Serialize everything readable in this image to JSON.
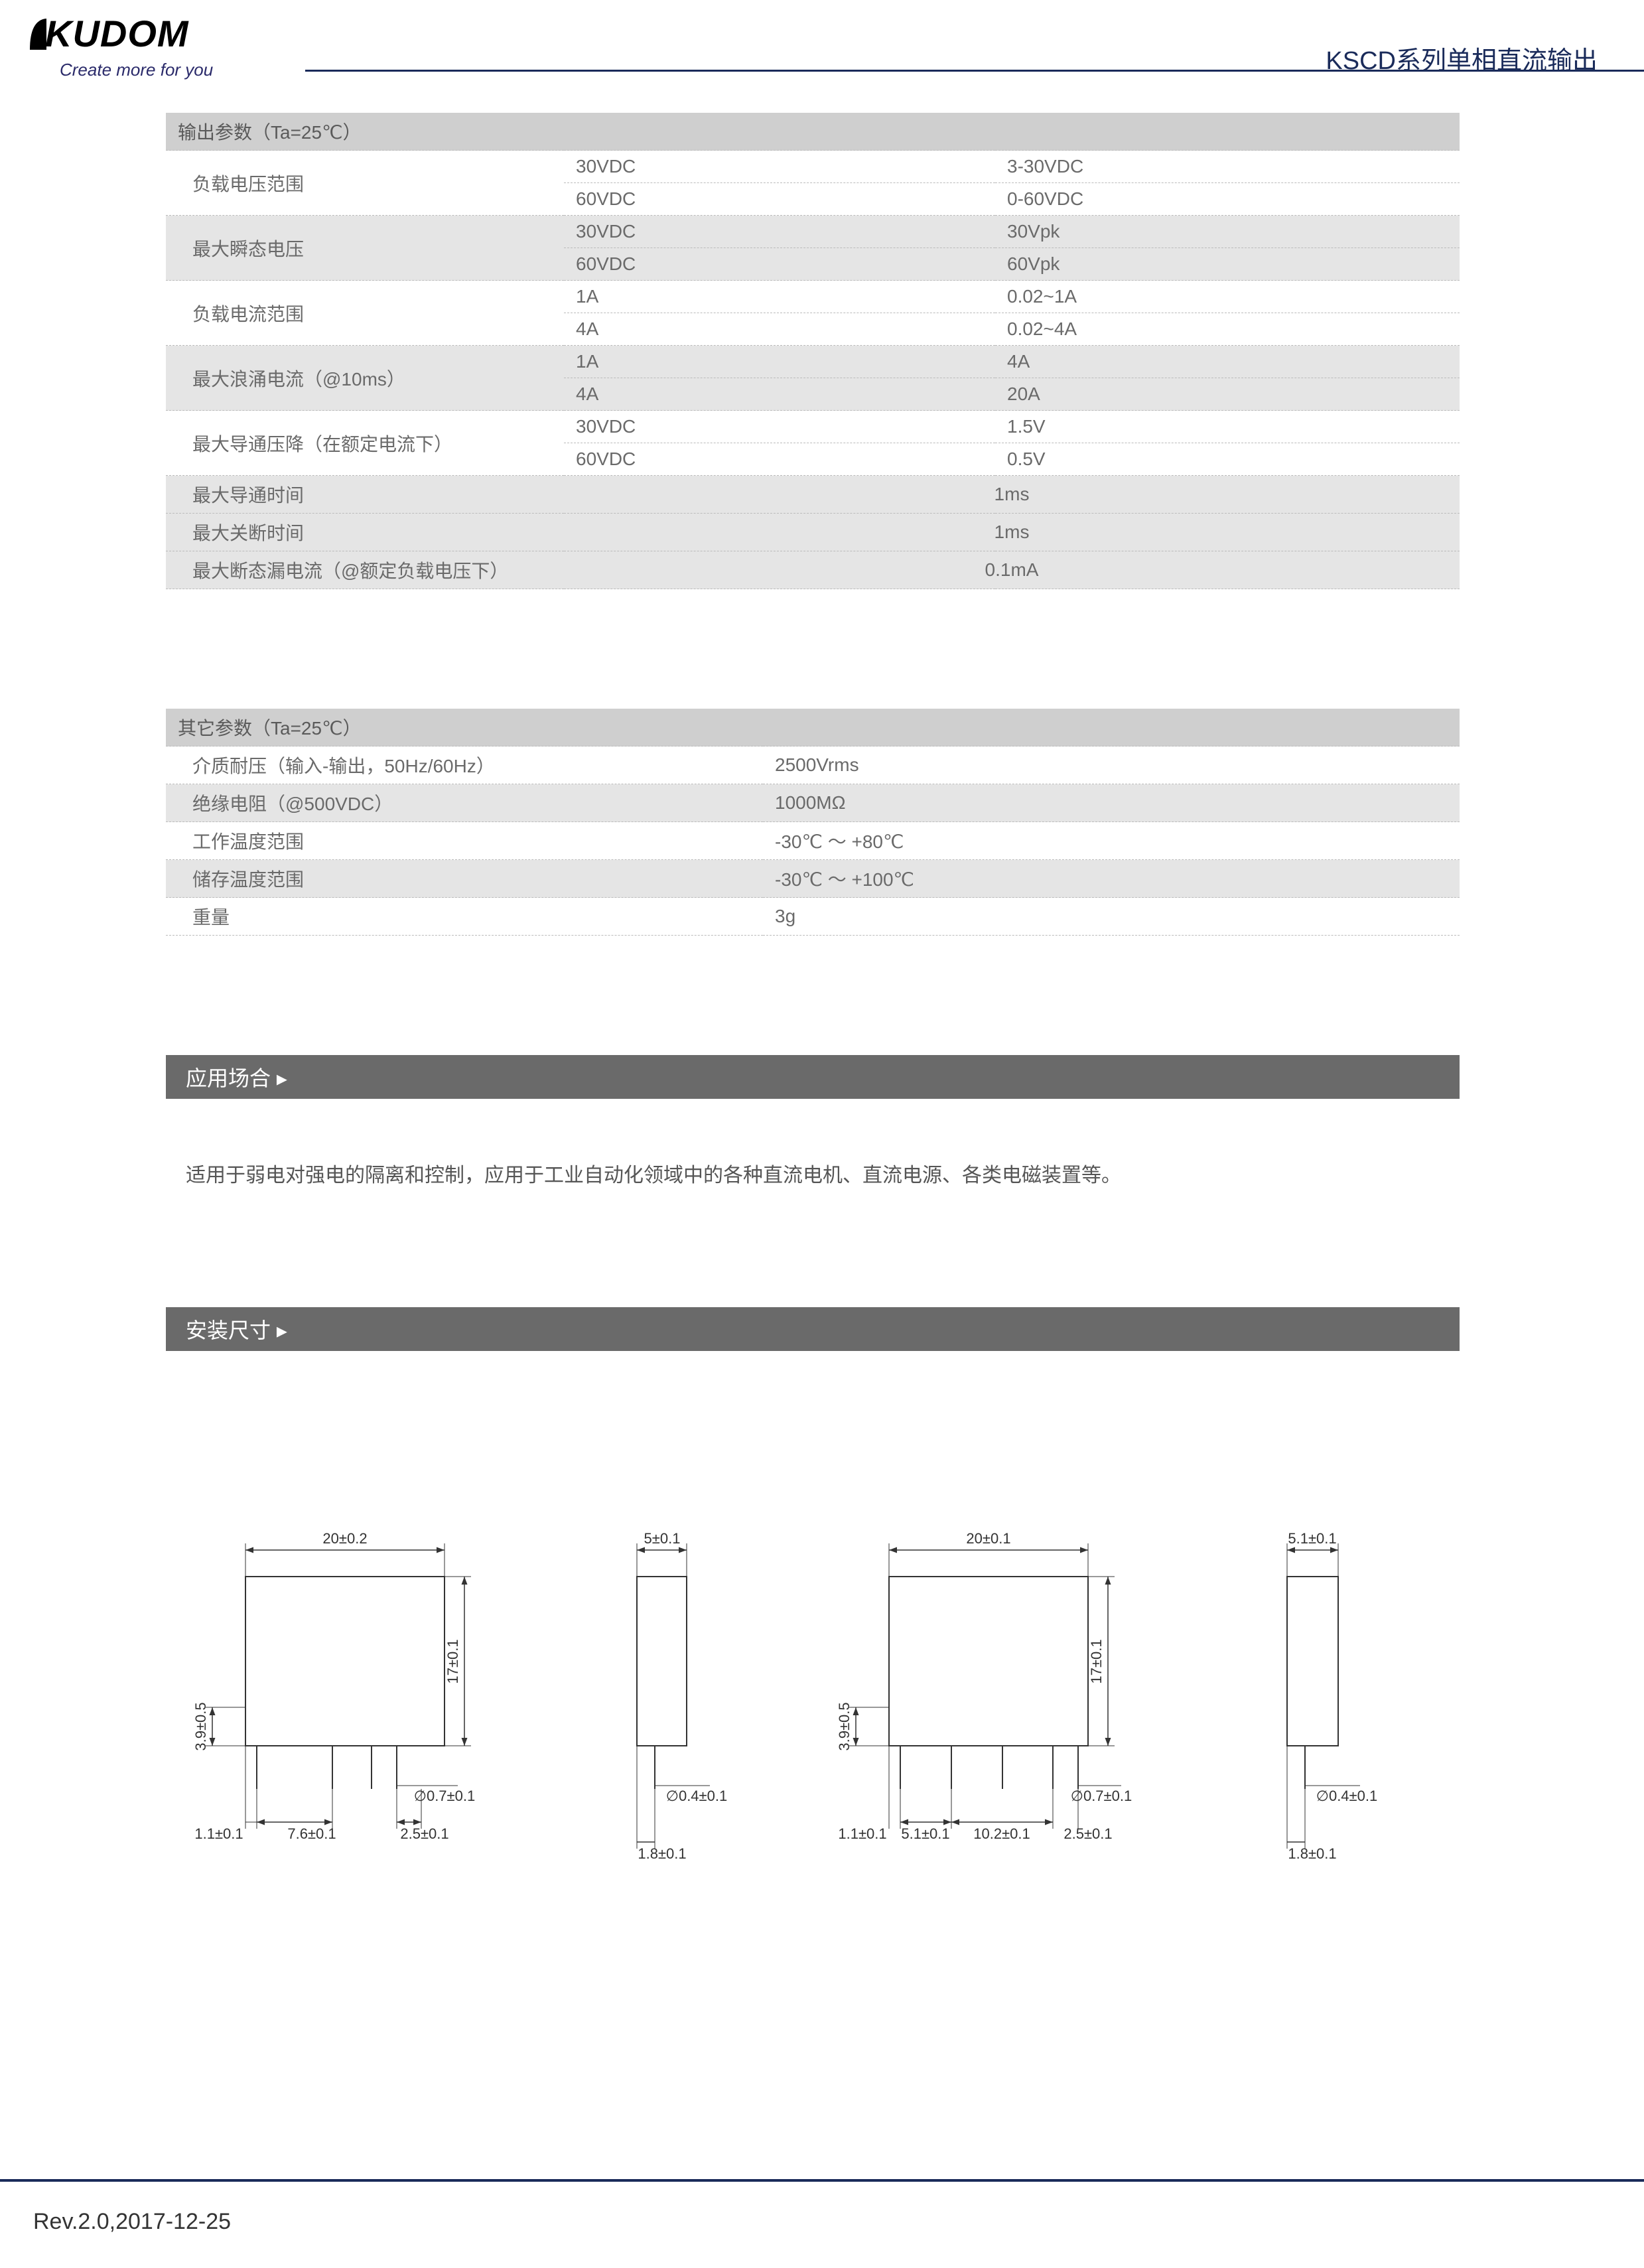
{
  "logo": {
    "brand": "KUDOM",
    "tagline": "Create more for you"
  },
  "header": {
    "title": "KSCD系列单相直流输出"
  },
  "table1": {
    "header": "输出参数（Ta=25℃）",
    "rows": [
      {
        "label": "负载电压范围",
        "grey": false,
        "pairs": [
          [
            "30VDC",
            "3-30VDC"
          ],
          [
            "60VDC",
            "0-60VDC"
          ]
        ]
      },
      {
        "label": "最大瞬态电压",
        "grey": true,
        "pairs": [
          [
            "30VDC",
            "30Vpk"
          ],
          [
            "60VDC",
            "60Vpk"
          ]
        ]
      },
      {
        "label": "负载电流范围",
        "grey": false,
        "pairs": [
          [
            "1A",
            "0.02~1A"
          ],
          [
            "4A",
            "0.02~4A"
          ]
        ]
      },
      {
        "label": "最大浪涌电流（@10ms）",
        "grey": true,
        "pairs": [
          [
            "1A",
            "4A"
          ],
          [
            "4A",
            "20A"
          ]
        ]
      },
      {
        "label": "最大导通压降（在额定电流下）",
        "grey": false,
        "pairs": [
          [
            "30VDC",
            "1.5V"
          ],
          [
            "60VDC",
            "0.5V"
          ]
        ]
      }
    ],
    "singles": [
      {
        "label": "最大导通时间",
        "value": "1ms",
        "grey": true
      },
      {
        "label": "最大关断时间",
        "value": "1ms",
        "grey": true
      },
      {
        "label": "最大断态漏电流（@额定负载电压下）",
        "value": "0.1mA",
        "grey": true
      }
    ]
  },
  "table2": {
    "header": "其它参数（Ta=25℃）",
    "rows": [
      {
        "label": "介质耐压（输入-输出，50Hz/60Hz）",
        "value": "2500Vrms",
        "grey": false
      },
      {
        "label": "绝缘电阻（@500VDC）",
        "value": "1000MΩ",
        "grey": true
      },
      {
        "label": "工作温度范围",
        "value": "-30℃ ～ +80℃",
        "grey": false
      },
      {
        "label": "储存温度范围",
        "value": "-30℃ ～ +100℃",
        "grey": true
      },
      {
        "label": "重量",
        "value": "3g",
        "grey": false
      }
    ]
  },
  "sections": {
    "application": "应用场合 ▸",
    "dimensions": "安装尺寸 ▸"
  },
  "application_text": "适用于弱电对强电的隔离和控制，应用于工业自动化领域中的各种直流电机、直流电源、各类电磁装置等。",
  "drawing_labels": {
    "d1_top": "20±0.2",
    "d1_h": "17±0.1",
    "d1_left": "3.9±0.5",
    "d1_b1": "1.1±0.1",
    "d1_b2": "7.6±0.1",
    "d1_b3": "2.5±0.1",
    "d1_pin_d": "∅0.7±0.1",
    "d2_top": "5±0.1",
    "d2_b": "1.8±0.1",
    "d2_pin_d": "∅0.4±0.1",
    "d3_top": "20±0.1",
    "d3_h": "17±0.1",
    "d3_left": "3.9±0.5",
    "d3_b1": "1.1±0.1",
    "d3_b2": "5.1±0.1",
    "d3_b3": "10.2±0.1",
    "d3_b4": "2.5±0.1",
    "d3_pin_d": "∅0.7±0.1",
    "d4_top": "5.1±0.1",
    "d4_b": "1.8±0.1",
    "d4_pin_d": "∅0.4±0.1"
  },
  "footer": {
    "rev": "Rev.2.0,2017-12-25"
  }
}
